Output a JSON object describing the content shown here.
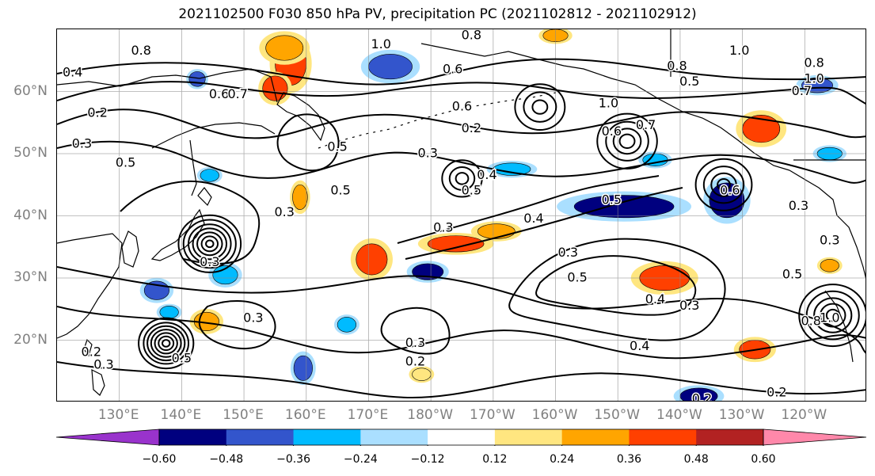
{
  "title": "2021102500 F030 850 hPa PV, precipitation PC (2021102812 - 2021102912)",
  "colors": {
    "pv_contour": "#000000",
    "coast": "#000000",
    "grid": "#8a8a8a",
    "axis_label": "#808080"
  },
  "map": {
    "projection": "PlateCarree",
    "lon_range": [
      120,
      250
    ],
    "lat_range": [
      10,
      70
    ],
    "lat_labels": [
      {
        "lat": 60,
        "label": "60°N"
      },
      {
        "lat": 50,
        "label": "50°N"
      },
      {
        "lat": 40,
        "label": "40°N"
      },
      {
        "lat": 30,
        "label": "30°N"
      },
      {
        "lat": 20,
        "label": "20°N"
      }
    ],
    "lon_labels": [
      {
        "lon": 130,
        "label": "130°E"
      },
      {
        "lon": 140,
        "label": "140°E"
      },
      {
        "lon": 150,
        "label": "150°E"
      },
      {
        "lon": 160,
        "label": "160°E"
      },
      {
        "lon": 170,
        "label": "170°E"
      },
      {
        "lon": 180,
        "label": "180°W"
      },
      {
        "lon": 190,
        "label": "170°W"
      },
      {
        "lon": 200,
        "label": "160°W"
      },
      {
        "lon": 210,
        "label": "150°W"
      },
      {
        "lon": 220,
        "label": "140°W"
      },
      {
        "lon": 230,
        "label": "130°W"
      },
      {
        "lon": 240,
        "label": "120°W"
      }
    ]
  },
  "colorbar": {
    "colors": [
      "#9933cc",
      "#00007f",
      "#3355cc",
      "#00bbff",
      "#aadfff",
      "#ffffff",
      "#ffe680",
      "#ffa500",
      "#ff4000",
      "#b22222",
      "#ff88aa"
    ],
    "extend": "both",
    "ticks": [
      {
        "value": -0.6,
        "label": "−0.60"
      },
      {
        "value": -0.48,
        "label": "−0.48"
      },
      {
        "value": -0.36,
        "label": "−0.36"
      },
      {
        "value": -0.24,
        "label": "−0.24"
      },
      {
        "value": -0.12,
        "label": "−0.12"
      },
      {
        "value": 0.12,
        "label": "0.12"
      },
      {
        "value": 0.24,
        "label": "0.24"
      },
      {
        "value": 0.36,
        "label": "0.36"
      },
      {
        "value": 0.48,
        "label": "0.48"
      },
      {
        "value": 0.6,
        "label": "0.60"
      }
    ]
  },
  "precip_pc_patches": [
    {
      "lon": 157.5,
      "lat": 64.5,
      "level": 0.36,
      "rx": 2.5,
      "ry": 3.5
    },
    {
      "lon": 156.5,
      "lat": 67.0,
      "level": 0.24,
      "rx": 3,
      "ry": 2
    },
    {
      "lon": 155.0,
      "lat": 60.5,
      "level": 0.36,
      "rx": 2,
      "ry": 2
    },
    {
      "lon": 159.0,
      "lat": 43.0,
      "level": 0.24,
      "rx": 1.2,
      "ry": 2
    },
    {
      "lon": 170.5,
      "lat": 33.0,
      "level": 0.36,
      "rx": 2.5,
      "ry": 2.5
    },
    {
      "lon": 184.0,
      "lat": 35.5,
      "level": 0.36,
      "rx": 4.5,
      "ry": 1.3
    },
    {
      "lon": 190.5,
      "lat": 37.5,
      "level": 0.24,
      "rx": 3,
      "ry": 1.2
    },
    {
      "lon": 217.5,
      "lat": 30.0,
      "level": 0.36,
      "rx": 4,
      "ry": 2
    },
    {
      "lon": 233.0,
      "lat": 54.0,
      "level": 0.36,
      "rx": 3,
      "ry": 2.2
    },
    {
      "lon": 232.0,
      "lat": 18.5,
      "level": 0.36,
      "rx": 2.5,
      "ry": 1.5
    },
    {
      "lon": 144.0,
      "lat": 23.0,
      "level": 0.24,
      "rx": 2,
      "ry": 1.5
    },
    {
      "lon": 178.5,
      "lat": 14.5,
      "level": 0.12,
      "rx": 1.5,
      "ry": 1
    },
    {
      "lon": 244.0,
      "lat": 32.0,
      "level": 0.24,
      "rx": 1.5,
      "ry": 1
    },
    {
      "lon": 200.0,
      "lat": 69.0,
      "level": 0.24,
      "rx": 2,
      "ry": 1
    },
    {
      "lon": 136.0,
      "lat": 28.0,
      "level": -0.36,
      "rx": 2,
      "ry": 1.5
    },
    {
      "lon": 138.0,
      "lat": 24.5,
      "level": -0.24,
      "rx": 1.5,
      "ry": 1
    },
    {
      "lon": 147.0,
      "lat": 30.5,
      "level": -0.24,
      "rx": 2,
      "ry": 1.5
    },
    {
      "lon": 179.5,
      "lat": 31.0,
      "level": -0.48,
      "rx": 2.5,
      "ry": 1.3
    },
    {
      "lon": 211.0,
      "lat": 41.5,
      "level": -0.48,
      "rx": 8,
      "ry": 1.8
    },
    {
      "lon": 227.5,
      "lat": 42.5,
      "level": -0.48,
      "rx": 2.8,
      "ry": 2.8
    },
    {
      "lon": 173.5,
      "lat": 64.0,
      "level": -0.36,
      "rx": 3.5,
      "ry": 2
    },
    {
      "lon": 166.5,
      "lat": 22.5,
      "level": -0.24,
      "rx": 1.5,
      "ry": 1.2
    },
    {
      "lon": 159.5,
      "lat": 15.5,
      "level": -0.36,
      "rx": 1.5,
      "ry": 2
    },
    {
      "lon": 223.0,
      "lat": 11.0,
      "level": -0.48,
      "rx": 3,
      "ry": 1.3
    },
    {
      "lon": 242.0,
      "lat": 61.0,
      "level": -0.36,
      "rx": 2.5,
      "ry": 1.2
    },
    {
      "lon": 244.0,
      "lat": 50.0,
      "level": -0.24,
      "rx": 2,
      "ry": 1
    },
    {
      "lon": 142.5,
      "lat": 62.0,
      "level": -0.36,
      "rx": 1.3,
      "ry": 1.2
    },
    {
      "lon": 193.0,
      "lat": 47.5,
      "level": -0.24,
      "rx": 3,
      "ry": 1
    },
    {
      "lon": 216.0,
      "lat": 49.0,
      "level": -0.24,
      "rx": 2,
      "ry": 1
    },
    {
      "lon": 144.5,
      "lat": 46.5,
      "level": -0.24,
      "rx": 1.5,
      "ry": 1
    }
  ],
  "pv_centres": [
    {
      "lon": 144.5,
      "lat": 35.5,
      "rings": [
        0.6,
        1.3,
        2.0,
        2.7,
        3.4,
        4.2,
        5.0
      ]
    },
    {
      "lon": 137.5,
      "lat": 19.5,
      "rings": [
        0.6,
        1.2,
        1.8,
        2.4,
        3.0,
        3.6,
        4.4
      ]
    },
    {
      "lon": 211.5,
      "lat": 52.0,
      "rings": [
        1.2,
        2.2,
        3.4,
        4.8
      ]
    },
    {
      "lon": 185.0,
      "lat": 46.0,
      "rings": [
        1.0,
        2.0,
        3.2
      ]
    },
    {
      "lon": 227.0,
      "lat": 45.0,
      "rings": [
        1.0,
        2.0,
        3.2,
        4.5
      ]
    },
    {
      "lon": 197.5,
      "lat": 57.5,
      "rings": [
        1.2,
        2.6,
        4.0
      ]
    },
    {
      "lon": 244.5,
      "lat": 24.0,
      "rings": [
        1.0,
        2.0,
        3.0,
        4.2,
        5.4
      ]
    }
  ],
  "pv_labels": [
    {
      "lon": 133.5,
      "lat": 66.5,
      "text": "0.8"
    },
    {
      "lon": 122.5,
      "lat": 63.0,
      "text": "0.4"
    },
    {
      "lon": 126.5,
      "lat": 56.5,
      "text": "0.2"
    },
    {
      "lon": 124.0,
      "lat": 51.5,
      "text": "0.3"
    },
    {
      "lon": 131.0,
      "lat": 48.5,
      "text": "0.5"
    },
    {
      "lon": 146.0,
      "lat": 59.5,
      "text": "0.6"
    },
    {
      "lon": 149.0,
      "lat": 59.5,
      "text": "0.7"
    },
    {
      "lon": 172.0,
      "lat": 67.5,
      "text": "1.0"
    },
    {
      "lon": 186.5,
      "lat": 69.0,
      "text": "0.8"
    },
    {
      "lon": 183.5,
      "lat": 63.5,
      "text": "0.6"
    },
    {
      "lon": 185.0,
      "lat": 57.5,
      "text": "0.6"
    },
    {
      "lon": 186.5,
      "lat": 54.0,
      "text": "0.2"
    },
    {
      "lon": 165.0,
      "lat": 51.0,
      "text": "0.5"
    },
    {
      "lon": 165.5,
      "lat": 44.0,
      "text": "0.5"
    },
    {
      "lon": 179.5,
      "lat": 50.0,
      "text": "0.3"
    },
    {
      "lon": 186.5,
      "lat": 44.0,
      "text": "0.5"
    },
    {
      "lon": 189.0,
      "lat": 46.5,
      "text": "0.4"
    },
    {
      "lon": 156.5,
      "lat": 40.5,
      "text": "0.3"
    },
    {
      "lon": 182.0,
      "lat": 38.0,
      "text": "0.3"
    },
    {
      "lon": 196.5,
      "lat": 39.5,
      "text": "0.4"
    },
    {
      "lon": 202.0,
      "lat": 34.0,
      "text": "0.3"
    },
    {
      "lon": 203.5,
      "lat": 30.0,
      "text": "0.5"
    },
    {
      "lon": 208.5,
      "lat": 58.0,
      "text": "1.0"
    },
    {
      "lon": 209.0,
      "lat": 53.5,
      "text": "0.6"
    },
    {
      "lon": 214.5,
      "lat": 54.5,
      "text": "0.7"
    },
    {
      "lon": 219.5,
      "lat": 64.0,
      "text": "0.8"
    },
    {
      "lon": 221.5,
      "lat": 61.5,
      "text": "0.5"
    },
    {
      "lon": 229.5,
      "lat": 66.5,
      "text": "1.0"
    },
    {
      "lon": 239.5,
      "lat": 60.0,
      "text": "0.7"
    },
    {
      "lon": 241.5,
      "lat": 64.5,
      "text": "0.8"
    },
    {
      "lon": 241.5,
      "lat": 62.0,
      "text": "1.0"
    },
    {
      "lon": 209.0,
      "lat": 42.5,
      "text": "0.5"
    },
    {
      "lon": 228.0,
      "lat": 44.0,
      "text": "0.6"
    },
    {
      "lon": 216.0,
      "lat": 26.5,
      "text": "0.4"
    },
    {
      "lon": 221.5,
      "lat": 25.5,
      "text": "0.3"
    },
    {
      "lon": 213.5,
      "lat": 19.0,
      "text": "0.4"
    },
    {
      "lon": 177.5,
      "lat": 19.5,
      "text": "0.3"
    },
    {
      "lon": 177.5,
      "lat": 16.5,
      "text": "0.2"
    },
    {
      "lon": 151.5,
      "lat": 23.5,
      "text": "0.3"
    },
    {
      "lon": 144.5,
      "lat": 32.5,
      "text": "0.3"
    },
    {
      "lon": 140.0,
      "lat": 17.0,
      "text": "0.5"
    },
    {
      "lon": 125.5,
      "lat": 18.0,
      "text": "0.2"
    },
    {
      "lon": 127.5,
      "lat": 16.0,
      "text": "0.3"
    },
    {
      "lon": 223.5,
      "lat": 10.5,
      "text": "0.2"
    },
    {
      "lon": 235.5,
      "lat": 11.5,
      "text": "0.2"
    },
    {
      "lon": 238.0,
      "lat": 30.5,
      "text": "0.5"
    },
    {
      "lon": 241.0,
      "lat": 23.0,
      "text": "0.8"
    },
    {
      "lon": 244.0,
      "lat": 23.5,
      "text": "1.0"
    },
    {
      "lon": 239.0,
      "lat": 41.5,
      "text": "0.3"
    },
    {
      "lon": 244.0,
      "lat": 36.0,
      "text": "0.3"
    }
  ]
}
